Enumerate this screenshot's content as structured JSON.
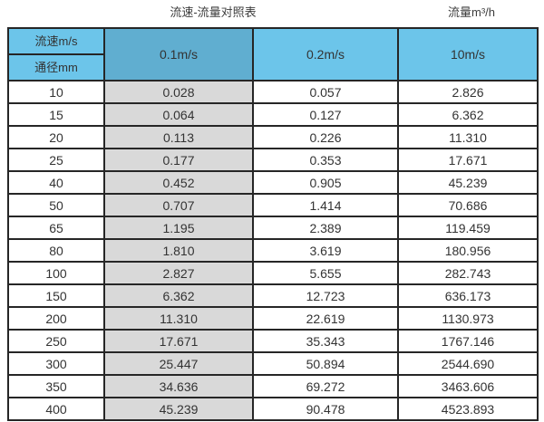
{
  "page": {
    "table_title": "流速-流量对照表",
    "unit_title": "流量m³/h"
  },
  "table": {
    "corner_top": "流速m/s",
    "corner_bottom": "通径mm",
    "columns": [
      "0.1m/s",
      "0.2m/s",
      "10m/s"
    ],
    "rows": [
      [
        "10",
        "0.028",
        "0.057",
        "2.826"
      ],
      [
        "15",
        "0.064",
        "0.127",
        "6.362"
      ],
      [
        "20",
        "0.113",
        "0.226",
        "11.310"
      ],
      [
        "25",
        "0.177",
        "0.353",
        "17.671"
      ],
      [
        "40",
        "0.452",
        "0.905",
        "45.239"
      ],
      [
        "50",
        "0.707",
        "1.414",
        "70.686"
      ],
      [
        "65",
        "1.195",
        "2.389",
        "119.459"
      ],
      [
        "80",
        "1.810",
        "3.619",
        "180.956"
      ],
      [
        "100",
        "2.827",
        "5.655",
        "282.743"
      ],
      [
        "150",
        "6.362",
        "12.723",
        "636.173"
      ],
      [
        "200",
        "11.310",
        "22.619",
        "1130.973"
      ],
      [
        "250",
        "17.671",
        "35.343",
        "1767.146"
      ],
      [
        "300",
        "25.447",
        "50.894",
        "2544.690"
      ],
      [
        "350",
        "34.636",
        "69.272",
        "3463.606"
      ],
      [
        "400",
        "45.239",
        "90.478",
        "4523.893"
      ]
    ]
  },
  "colors": {
    "header_light_blue": "#6cc5ea",
    "header_steel_blue": "#60aed0",
    "highlight_column_gray": "#d9d9d9",
    "border_dark": "#262626",
    "text": "#333333"
  },
  "chart_data": {
    "type": "table",
    "title": "流速-流量对照表",
    "unit_label": "流量m³/h",
    "col_header_label": "流速m/s",
    "row_header_label": "通径mm",
    "categories": [
      10,
      15,
      20,
      25,
      40,
      50,
      65,
      80,
      100,
      150,
      200,
      250,
      300,
      350,
      400
    ],
    "series": [
      {
        "name": "0.1m/s",
        "values": [
          0.028,
          0.064,
          0.113,
          0.177,
          0.452,
          0.707,
          1.195,
          1.81,
          2.827,
          6.362,
          11.31,
          17.671,
          25.447,
          34.636,
          45.239
        ]
      },
      {
        "name": "0.2m/s",
        "values": [
          0.057,
          0.127,
          0.226,
          0.353,
          0.905,
          1.414,
          2.389,
          3.619,
          5.655,
          12.723,
          22.619,
          35.343,
          50.894,
          69.272,
          90.478
        ]
      },
      {
        "name": "10m/s",
        "values": [
          2.826,
          6.362,
          11.31,
          17.671,
          45.239,
          70.686,
          119.459,
          180.956,
          282.743,
          636.173,
          1130.973,
          1767.146,
          2544.69,
          3463.606,
          4523.893
        ]
      }
    ]
  }
}
